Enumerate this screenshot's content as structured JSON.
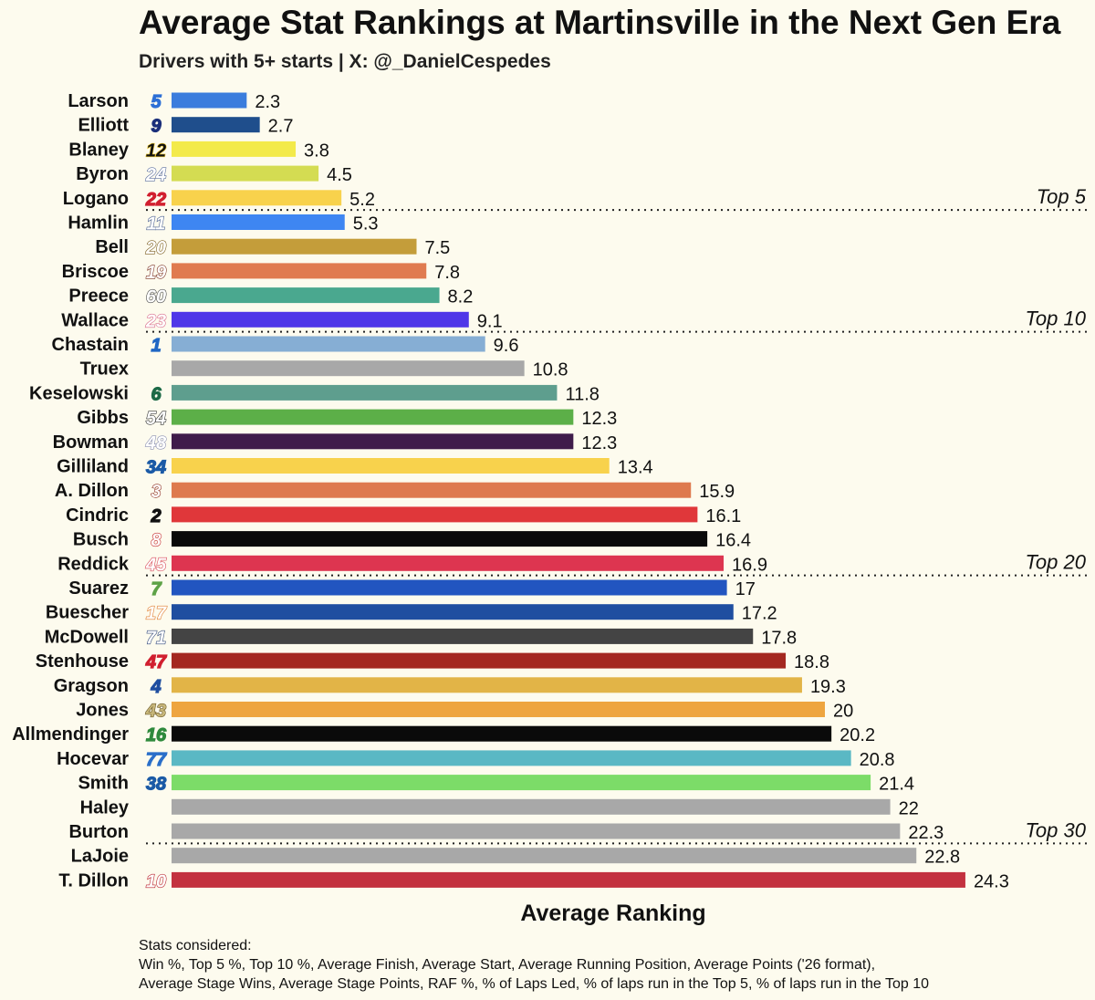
{
  "chart_data": {
    "type": "bar",
    "orientation": "horizontal",
    "title": "Average Stat Rankings at Martinsville in the Next Gen Era",
    "subtitle": "Drivers with 5+ starts | X: @_DanielCespedes",
    "xlabel": "Average Ranking",
    "ylabel": "",
    "xlim": [
      0,
      26
    ],
    "grid": false,
    "categories": [
      "Larson",
      "Elliott",
      "Blaney",
      "Byron",
      "Logano",
      "Hamlin",
      "Bell",
      "Briscoe",
      "Preece",
      "Wallace",
      "Chastain",
      "Truex",
      "Keselowski",
      "Gibbs",
      "Bowman",
      "Gilliland",
      "A. Dillon",
      "Cindric",
      "Busch",
      "Reddick",
      "Suarez",
      "Buescher",
      "McDowell",
      "Stenhouse",
      "Gragson",
      "Jones",
      "Allmendinger",
      "Hocevar",
      "Smith",
      "Haley",
      "Burton",
      "LaJoie",
      "T. Dillon"
    ],
    "car_numbers": [
      "5",
      "9",
      "12",
      "24",
      "22",
      "11",
      "20",
      "19",
      "60",
      "23",
      "1",
      "",
      "6",
      "54",
      "48",
      "34",
      "3",
      "2",
      "8",
      "45",
      "7",
      "17",
      "71",
      "47",
      "4",
      "43",
      "16",
      "77",
      "38",
      "",
      "",
      "",
      "10"
    ],
    "number_colors": [
      "#2c6fd6",
      "#1b2f7a",
      "#111111",
      "#ffffff",
      "#d11f2f",
      "#ffffff",
      "#ffffff",
      "#ffffff",
      "#ffffff",
      "#ffffff",
      "#1f66c4",
      "#111111",
      "#1d6a47",
      "#ffffff",
      "#ffffff",
      "#1b5aa6",
      "#ffffff",
      "#111111",
      "#ffffff",
      "#ffffff",
      "#5ea247",
      "#ffffff",
      "#ffffff",
      "#d11f2f",
      "#1f4ea0",
      "#c8b77a",
      "#2f8a3c",
      "#2a6fc9",
      "#1b5aa6",
      "#111111",
      "#111111",
      "#111111",
      "#ffffff"
    ],
    "number_strokes": [
      "#2c6fd6",
      "#1b2f7a",
      "#e8c22a",
      "#5a6e9e",
      "#d11f2f",
      "#4a5f8f",
      "#7a5c1e",
      "#7a3020",
      "#444444",
      "#d86a8a",
      "#1f66c4",
      "#111111",
      "#1d6a47",
      "#333333",
      "#8a8fb0",
      "#1b5aa6",
      "#8a2a1a",
      "#111111",
      "#c42a2a",
      "#d84a5a",
      "#5ea247",
      "#e07a2a",
      "#334a7a",
      "#d11f2f",
      "#1f4ea0",
      "#6b5a2a",
      "#2f8a3c",
      "#2a6fc9",
      "#1b5aa6",
      "#111111",
      "#111111",
      "#111111",
      "#b81f2a"
    ],
    "values": [
      2.3,
      2.7,
      3.8,
      4.5,
      5.2,
      5.3,
      7.5,
      7.8,
      8.2,
      9.1,
      9.6,
      10.8,
      11.8,
      12.3,
      12.3,
      13.4,
      15.9,
      16.1,
      16.4,
      16.9,
      17,
      17.2,
      17.8,
      18.8,
      19.3,
      20,
      20.2,
      20.8,
      21.4,
      22,
      22.3,
      22.8,
      24.3
    ],
    "value_labels": [
      "2.3",
      "2.7",
      "3.8",
      "4.5",
      "5.2",
      "5.3",
      "7.5",
      "7.8",
      "8.2",
      "9.1",
      "9.6",
      "10.8",
      "11.8",
      "12.3",
      "12.3",
      "13.4",
      "15.9",
      "16.1",
      "16.4",
      "16.9",
      "17",
      "17.2",
      "17.8",
      "18.8",
      "19.3",
      "20",
      "20.2",
      "20.8",
      "21.4",
      "22",
      "22.3",
      "22.8",
      "24.3"
    ],
    "bar_colors": [
      "#3b7ddd",
      "#1f4e8c",
      "#f3ea4a",
      "#d4dc52",
      "#f8d24c",
      "#3e86f2",
      "#c49d3a",
      "#e07b50",
      "#4aa88f",
      "#4f37e8",
      "#86aed4",
      "#a8a8a8",
      "#5e9e8e",
      "#5caf48",
      "#3f1b4a",
      "#f8d24c",
      "#de7a4e",
      "#e0373a",
      "#0a0a0a",
      "#dd3550",
      "#2255c0",
      "#1f4ea0",
      "#444444",
      "#a42820",
      "#e2b447",
      "#eea540",
      "#0a0a0a",
      "#5ab8c4",
      "#7cdc68",
      "#a8a8a8",
      "#a8a8a8",
      "#a8a8a8",
      "#c3313f"
    ],
    "groups": [
      {
        "label": "Top 5",
        "after_index": 4
      },
      {
        "label": "Top 10",
        "after_index": 9
      },
      {
        "label": "Top 20",
        "after_index": 19
      },
      {
        "label": "Top 30",
        "after_index": 30
      }
    ]
  },
  "footer": {
    "heading": "Stats considered:",
    "line1": "Win %, Top 5 %, Top 10 %, Average Finish, Average Start, Average Running Position, Average Points ('26 format),",
    "line2": "Average Stage Wins, Average Stage Points, RAF %, % of Laps Led, % of laps run in the Top 5, % of laps run in the Top 10"
  }
}
